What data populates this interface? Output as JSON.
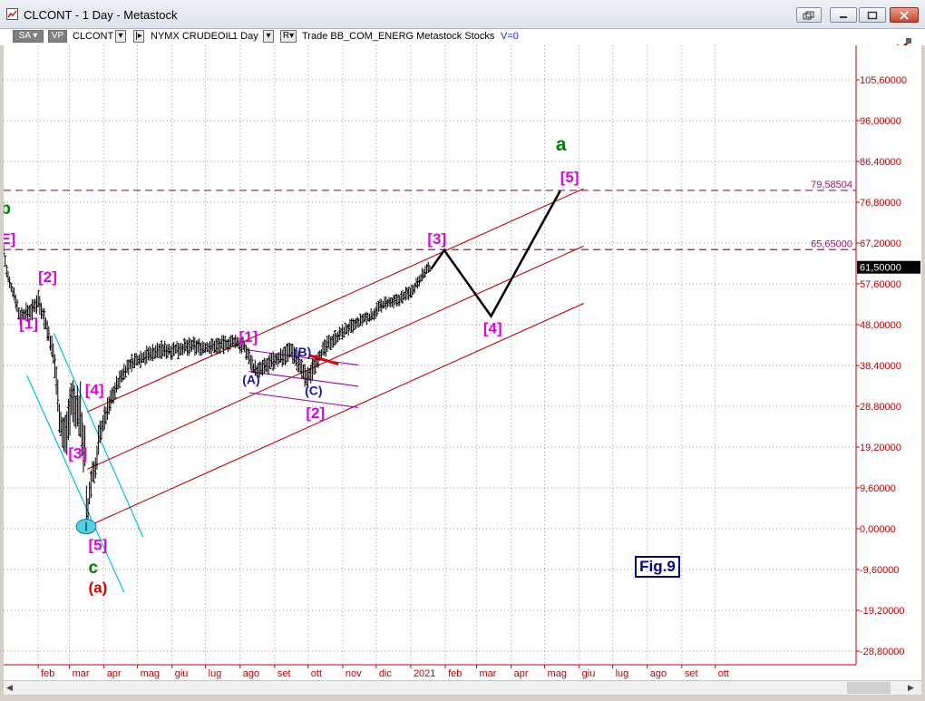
{
  "window": {
    "title": "CLCONT - 1 Day - Metastock"
  },
  "toolbar": {
    "sa": "SA",
    "vp": "VP",
    "symbol": "CLCONT",
    "exchange": "NYMX CRUDEOIL",
    "period": "1 Day",
    "r_label": "R",
    "template_text": "Trade  BB_COM_ENERG  Metastock  Stocks",
    "volume_text": "V=0"
  },
  "colors": {
    "price_bars": "#000000",
    "channel": "#c00000",
    "cyan_channel": "#00c0e0",
    "purple_channel": "#a000a0",
    "fib_lines": "#9b1a5a",
    "wave_magenta": "#e000e0",
    "wave_green": "#007f00",
    "wave_red": "#e00000",
    "wave_blue": "#1a1aa0",
    "projection": "#000000",
    "axis": "#c00000"
  },
  "icons": {
    "app": "chart-icon",
    "toolbar_right": "chart-tools-icon"
  },
  "chart_data": {
    "type": "bar",
    "symbol": "CLCONT",
    "ylim": [
      -33.0,
      113.0
    ],
    "y_ticks": [
      "105,60000",
      "96,00000",
      "86,40000",
      "76,80000",
      "67,20000",
      "57,60000",
      "48,00000",
      "38,40000",
      "28,80000",
      "19,20000",
      "9,60000",
      "0,00000",
      "-9,60000",
      "-19,20000",
      "-28,80000"
    ],
    "y_tick_values": [
      105.6,
      96.0,
      86.4,
      76.8,
      67.2,
      57.6,
      48.0,
      38.4,
      28.8,
      19.2,
      9.6,
      0.0,
      -9.6,
      -19.2,
      -28.8
    ],
    "x_range": [
      0,
      740
    ],
    "x_ticks": [
      {
        "label": "feb",
        "x": 31
      },
      {
        "label": "mar",
        "x": 59
      },
      {
        "label": "apr",
        "x": 90
      },
      {
        "label": "mag",
        "x": 120
      },
      {
        "label": "giu",
        "x": 151
      },
      {
        "label": "lug",
        "x": 181
      },
      {
        "label": "ago",
        "x": 212
      },
      {
        "label": "set",
        "x": 243
      },
      {
        "label": "ott",
        "x": 273
      },
      {
        "label": "nov",
        "x": 304
      },
      {
        "label": "dic",
        "x": 334
      },
      {
        "label": "2021",
        "x": 365
      },
      {
        "label": "feb",
        "x": 396
      },
      {
        "label": "mar",
        "x": 424
      },
      {
        "label": "apr",
        "x": 455
      },
      {
        "label": "mag",
        "x": 485
      },
      {
        "label": "giu",
        "x": 516
      },
      {
        "label": "lug",
        "x": 546
      },
      {
        "label": "ago",
        "x": 577
      },
      {
        "label": "set",
        "x": 608
      },
      {
        "label": "ott",
        "x": 638
      }
    ],
    "last_price": {
      "value": 61.5,
      "label": "61,50000"
    },
    "horizontal_levels": [
      {
        "value": 79.58504,
        "label": "79,58504"
      },
      {
        "value": 65.65,
        "label": "65,65000"
      }
    ],
    "price_path": [
      [
        0,
        65.5
      ],
      [
        3,
        60
      ],
      [
        6,
        57
      ],
      [
        10,
        55
      ],
      [
        14,
        50
      ],
      [
        18,
        50.5
      ],
      [
        22,
        51
      ],
      [
        26,
        51.5
      ],
      [
        31,
        54
      ],
      [
        36,
        50
      ],
      [
        41,
        45
      ],
      [
        45,
        40
      ],
      [
        47,
        36
      ],
      [
        50,
        27
      ],
      [
        53,
        22
      ],
      [
        56,
        22
      ],
      [
        59,
        28
      ],
      [
        61,
        30
      ],
      [
        65,
        28
      ],
      [
        69,
        27
      ],
      [
        71,
        21
      ],
      [
        73,
        18
      ],
      [
        74,
        6
      ],
      [
        75,
        -1
      ],
      [
        76,
        6
      ],
      [
        78,
        10
      ],
      [
        80,
        14
      ],
      [
        83,
        14
      ],
      [
        85,
        21
      ],
      [
        88,
        24
      ],
      [
        92,
        27
      ],
      [
        97,
        31
      ],
      [
        102,
        34
      ],
      [
        108,
        37
      ],
      [
        115,
        39
      ],
      [
        122,
        40
      ],
      [
        130,
        41
      ],
      [
        140,
        42
      ],
      [
        150,
        42
      ],
      [
        160,
        42.5
      ],
      [
        170,
        43
      ],
      [
        180,
        42.5
      ],
      [
        190,
        43
      ],
      [
        200,
        43.5
      ],
      [
        208,
        44
      ],
      [
        215,
        43
      ],
      [
        220,
        40.5
      ],
      [
        224,
        38
      ],
      [
        228,
        37
      ],
      [
        234,
        38
      ],
      [
        240,
        39
      ],
      [
        246,
        40
      ],
      [
        252,
        41
      ],
      [
        258,
        42
      ],
      [
        263,
        40
      ],
      [
        268,
        37
      ],
      [
        272,
        35
      ],
      [
        276,
        37
      ],
      [
        281,
        40
      ],
      [
        287,
        42
      ],
      [
        293,
        44
      ],
      [
        300,
        45.5
      ],
      [
        308,
        47
      ],
      [
        316,
        48
      ],
      [
        324,
        49.5
      ],
      [
        330,
        50
      ],
      [
        336,
        52
      ],
      [
        342,
        53
      ],
      [
        348,
        53
      ],
      [
        355,
        54
      ],
      [
        360,
        55
      ],
      [
        366,
        56
      ],
      [
        372,
        58.5
      ],
      [
        378,
        60.5
      ],
      [
        383,
        61.5
      ]
    ],
    "price_volatility": [
      [
        0,
        2
      ],
      [
        40,
        3
      ],
      [
        55,
        6
      ],
      [
        70,
        8
      ],
      [
        80,
        4
      ],
      [
        100,
        2.5
      ],
      [
        220,
        2.2
      ],
      [
        270,
        3
      ],
      [
        300,
        2
      ],
      [
        383,
        1.8
      ]
    ],
    "cyan_channel": [
      [
        [
          45,
          46
        ],
        [
          125,
          -2
        ]
      ],
      [
        [
          21,
          36
        ],
        [
          108,
          -15
        ]
      ]
    ],
    "red_channel": [
      {
        "p1": [
          75,
          27.5
        ],
        "p2": [
          520,
          80.0
        ]
      },
      {
        "p1": [
          75,
          14.0
        ],
        "p2": [
          520,
          66.5
        ]
      },
      {
        "p1": [
          75,
          0.5
        ],
        "p2": [
          520,
          53.0
        ]
      }
    ],
    "purple_channel": [
      [
        [
          220,
          42
        ],
        [
          318,
          38.5
        ]
      ],
      [
        [
          220,
          37
        ],
        [
          318,
          33.5
        ]
      ],
      [
        [
          220,
          32
        ],
        [
          318,
          28.5
        ]
      ]
    ],
    "red_segment": [
      [
        275,
        40.7
      ],
      [
        300,
        38.7
      ]
    ],
    "projection": [
      [
        383,
        61
      ],
      [
        395,
        65.5
      ],
      [
        437,
        50
      ],
      [
        499,
        79.5
      ]
    ],
    "wave_labels": [
      {
        "text": "b",
        "x": -3,
        "y": 74,
        "color": "wave_green",
        "size": 19
      },
      {
        "text": "E]",
        "x": -3,
        "y": 67,
        "color": "wave_magenta",
        "size": 17
      },
      {
        "text": "[2]",
        "x": 31,
        "y": 58,
        "color": "wave_magenta",
        "size": 17
      },
      {
        "text": "[1]",
        "x": 14,
        "y": 47,
        "color": "wave_magenta",
        "size": 17
      },
      {
        "text": "[4]",
        "x": 73,
        "y": 31.5,
        "color": "wave_magenta",
        "size": 17
      },
      {
        "text": "[3]",
        "x": 58,
        "y": 16.5,
        "color": "wave_magenta",
        "size": 17
      },
      {
        "text": "[5]",
        "x": 76,
        "y": -5,
        "color": "wave_magenta",
        "size": 17
      },
      {
        "text": "c",
        "x": 76,
        "y": -10.5,
        "color": "wave_green",
        "size": 19
      },
      {
        "text": "(a)",
        "x": 76,
        "y": -15,
        "color": "wave_red",
        "size": 17
      },
      {
        "text": "[1]",
        "x": 211,
        "y": 44,
        "color": "wave_magenta",
        "size": 17
      },
      {
        "text": "(B)",
        "x": 260,
        "y": 40.5,
        "color": "wave_blue",
        "size": 14
      },
      {
        "text": "(A)",
        "x": 214,
        "y": 34,
        "color": "wave_blue",
        "size": 14
      },
      {
        "text": "(C)",
        "x": 270,
        "y": 31.5,
        "color": "wave_blue",
        "size": 14
      },
      {
        "text": "[2]",
        "x": 271,
        "y": 26,
        "color": "wave_magenta",
        "size": 17
      },
      {
        "text": "[3]",
        "x": 380,
        "y": 67,
        "color": "wave_magenta",
        "size": 17
      },
      {
        "text": "[4]",
        "x": 430,
        "y": 46,
        "color": "wave_magenta",
        "size": 17
      },
      {
        "text": "a",
        "x": 495,
        "y": 89,
        "color": "wave_green",
        "size": 21
      },
      {
        "text": "[5]",
        "x": 499,
        "y": 81.5,
        "color": "wave_magenta",
        "size": 17
      }
    ],
    "marker": {
      "x": 74,
      "y": 0.5
    },
    "annotation": "Fig.9"
  }
}
